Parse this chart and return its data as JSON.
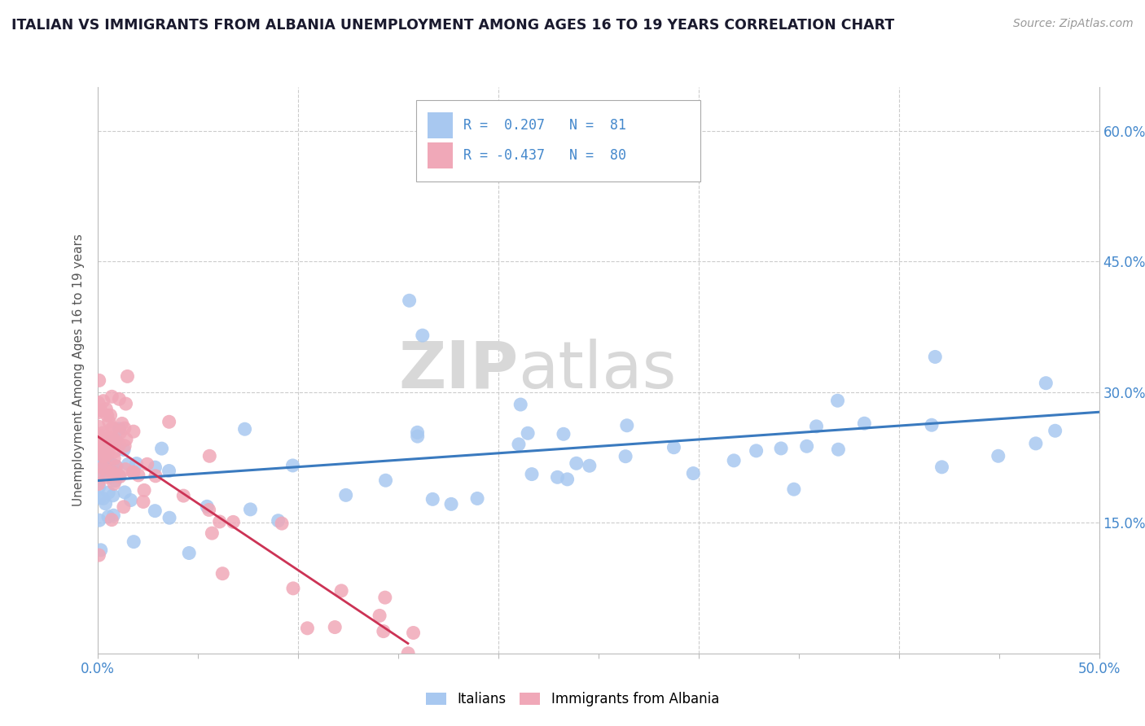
{
  "title": "ITALIAN VS IMMIGRANTS FROM ALBANIA UNEMPLOYMENT AMONG AGES 16 TO 19 YEARS CORRELATION CHART",
  "source_text": "Source: ZipAtlas.com",
  "ylabel": "Unemployment Among Ages 16 to 19 years",
  "xlim": [
    0.0,
    0.5
  ],
  "ylim": [
    0.0,
    0.65
  ],
  "legend_r_italian": " 0.207",
  "legend_n_italian": " 81",
  "legend_r_albania": "-0.437",
  "legend_n_albania": " 80",
  "italian_color": "#a8c8f0",
  "albania_color": "#f0a8b8",
  "italian_line_color": "#3a7abf",
  "albania_line_color": "#cc3355",
  "legend_italian_label": "Italians",
  "legend_albania_label": "Immigrants from Albania",
  "background_color": "#ffffff",
  "grid_color": "#cccccc",
  "title_color": "#1a1a2e",
  "axis_color": "#4488cc",
  "watermark_zip": "ZIP",
  "watermark_atlas": "atlas"
}
